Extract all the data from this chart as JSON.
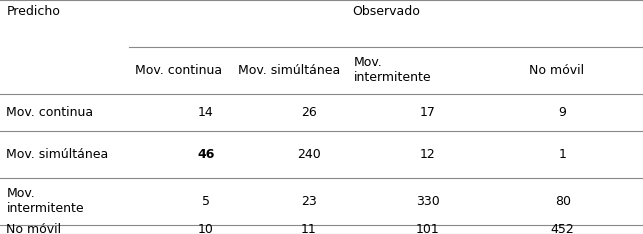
{
  "title_predicho": "Predicho",
  "title_observado": "Observado",
  "col_headers": [
    "Mov. continua",
    "Mov. simúltánea",
    "Mov.\nintermitente",
    "No móvil"
  ],
  "row_headers": [
    "Mov. continua",
    "Mov. simúltánea",
    "Mov.\nintermitente",
    "No móvil"
  ],
  "values": [
    [
      "14",
      "26",
      "17",
      "9"
    ],
    [
      "46",
      "240",
      "12",
      "1"
    ],
    [
      "5",
      "23",
      "330",
      "80"
    ],
    [
      "10",
      "11",
      "101",
      "452"
    ]
  ],
  "bold_cells": [
    [
      1,
      0
    ]
  ],
  "bg_color": "#ffffff",
  "text_color": "#000000",
  "line_color": "#888888",
  "font_size": 9,
  "header_font_size": 9
}
